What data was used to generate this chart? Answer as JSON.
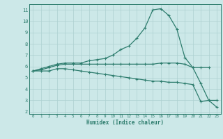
{
  "title": "",
  "xlabel": "Humidex (Indice chaleur)",
  "x": [
    0,
    1,
    2,
    3,
    4,
    5,
    6,
    7,
    8,
    9,
    10,
    11,
    12,
    13,
    14,
    15,
    16,
    17,
    18,
    19,
    20,
    21,
    22,
    23
  ],
  "line_max": [
    5.6,
    5.8,
    6.0,
    6.2,
    6.3,
    6.3,
    6.3,
    6.5,
    6.6,
    6.7,
    7.0,
    7.5,
    7.8,
    8.5,
    9.4,
    11.0,
    11.1,
    10.5,
    9.3,
    6.8,
    5.9,
    5.9,
    5.9,
    null
  ],
  "line_mean": [
    5.6,
    5.7,
    5.9,
    6.1,
    6.2,
    6.2,
    6.2,
    6.2,
    6.2,
    6.2,
    6.2,
    6.2,
    6.2,
    6.2,
    6.2,
    6.2,
    6.3,
    6.3,
    6.3,
    6.2,
    5.9,
    4.5,
    3.0,
    3.0
  ],
  "line_min": [
    5.6,
    5.6,
    5.6,
    5.8,
    5.8,
    5.7,
    5.6,
    5.5,
    5.4,
    5.3,
    5.2,
    5.1,
    5.0,
    4.9,
    4.8,
    4.7,
    4.7,
    4.6,
    4.6,
    4.5,
    4.4,
    2.9,
    3.0,
    2.4
  ],
  "ylim": [
    1.8,
    11.5
  ],
  "xlim": [
    -0.5,
    23.5
  ],
  "yticks": [
    2,
    3,
    4,
    5,
    6,
    7,
    8,
    9,
    10,
    11
  ],
  "xticks": [
    0,
    1,
    2,
    3,
    4,
    5,
    6,
    7,
    8,
    9,
    10,
    11,
    12,
    13,
    14,
    15,
    16,
    17,
    18,
    19,
    20,
    21,
    22,
    23
  ],
  "line_color": "#2e7d6e",
  "bg_color": "#cce8e8",
  "grid_color": "#add0d0",
  "marker": "+"
}
